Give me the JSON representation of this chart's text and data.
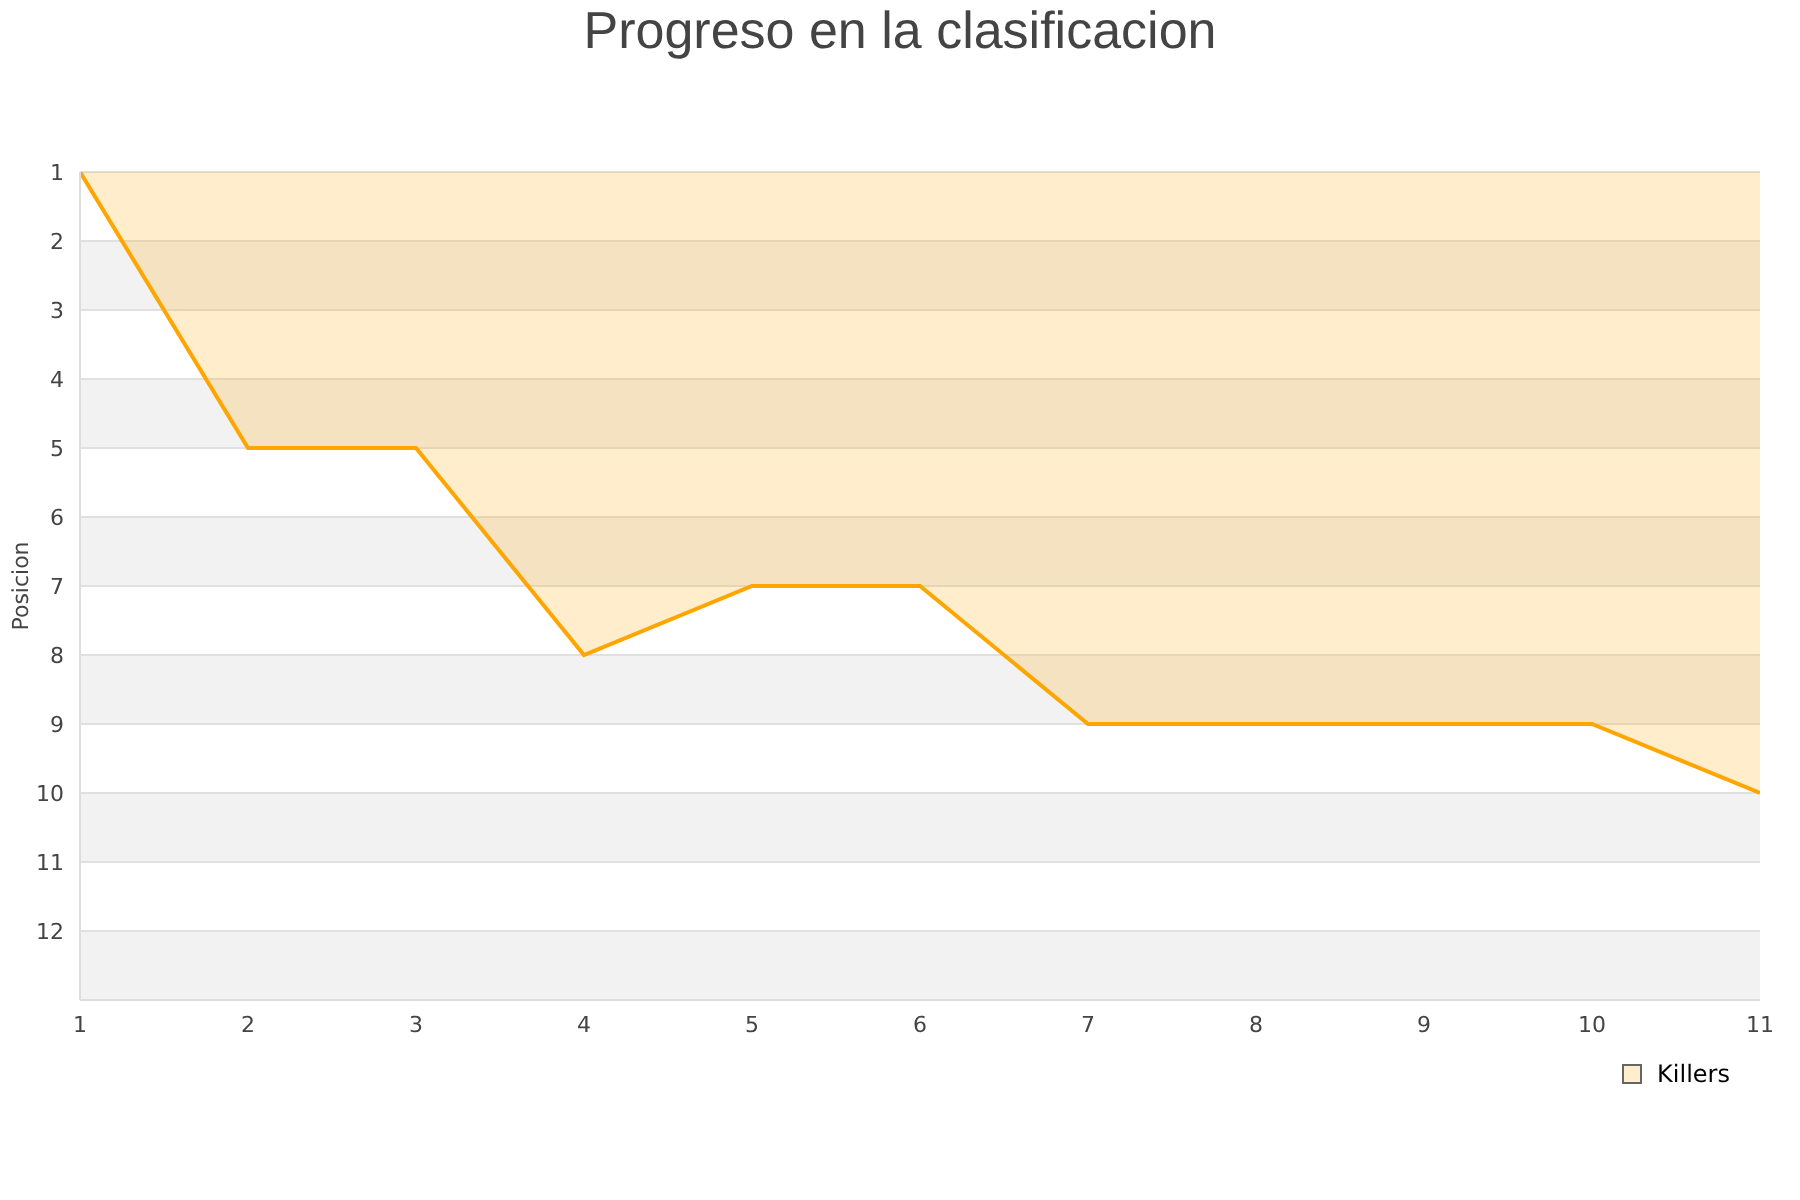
{
  "chart_data": {
    "type": "area",
    "title": "Progreso en la clasificacion",
    "ylabel": "Posicion",
    "x": [
      1,
      2,
      3,
      4,
      5,
      6,
      7,
      8,
      9,
      10,
      11
    ],
    "series": [
      {
        "name": "Killers",
        "color": "#ffa500",
        "values": [
          1,
          5,
          5,
          8,
          7,
          7,
          9,
          9,
          9,
          9,
          10
        ]
      }
    ],
    "xlim": [
      1,
      11
    ],
    "xticks": [
      1,
      2,
      3,
      4,
      5,
      6,
      7,
      8,
      9,
      10,
      11
    ],
    "ylim": [
      13,
      1
    ],
    "yticks": [
      1,
      2,
      3,
      4,
      5,
      6,
      7,
      8,
      9,
      10,
      11,
      12
    ],
    "grid": "y",
    "legend": "bottom right",
    "marker": "none"
  }
}
